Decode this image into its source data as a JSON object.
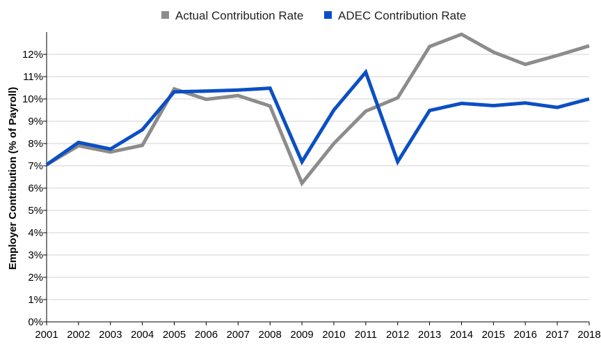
{
  "chart_data": {
    "type": "line",
    "title": "",
    "xlabel": "",
    "ylabel": "Employer Contribution (% of Payroll)",
    "x": [
      "2001",
      "2002",
      "2003",
      "2004",
      "2005",
      "2006",
      "2007",
      "2008",
      "2009",
      "2010",
      "2011",
      "2012",
      "2013",
      "2014",
      "2015",
      "2016",
      "2017",
      "2018"
    ],
    "ylim": [
      0,
      13
    ],
    "yticks": [
      "0%",
      "1%",
      "2%",
      "3%",
      "4%",
      "5%",
      "6%",
      "7%",
      "8%",
      "9%",
      "10%",
      "11%",
      "12%"
    ],
    "grid": true,
    "legend_position": "top-center",
    "series": [
      {
        "name": "Actual Contribution Rate",
        "color": "#8c8c8c",
        "values": [
          7.05,
          7.9,
          7.62,
          7.92,
          10.45,
          9.98,
          10.15,
          9.68,
          6.22,
          8.0,
          9.45,
          10.05,
          12.35,
          12.9,
          12.1,
          11.55,
          11.95,
          12.38
        ]
      },
      {
        "name": "ADEC Contribution Rate",
        "color": "#0b4fc4",
        "values": [
          7.05,
          8.05,
          7.75,
          8.62,
          10.32,
          10.35,
          10.4,
          10.48,
          7.18,
          9.5,
          11.2,
          7.18,
          9.48,
          9.8,
          9.7,
          9.82,
          9.62,
          10.0
        ]
      }
    ]
  }
}
